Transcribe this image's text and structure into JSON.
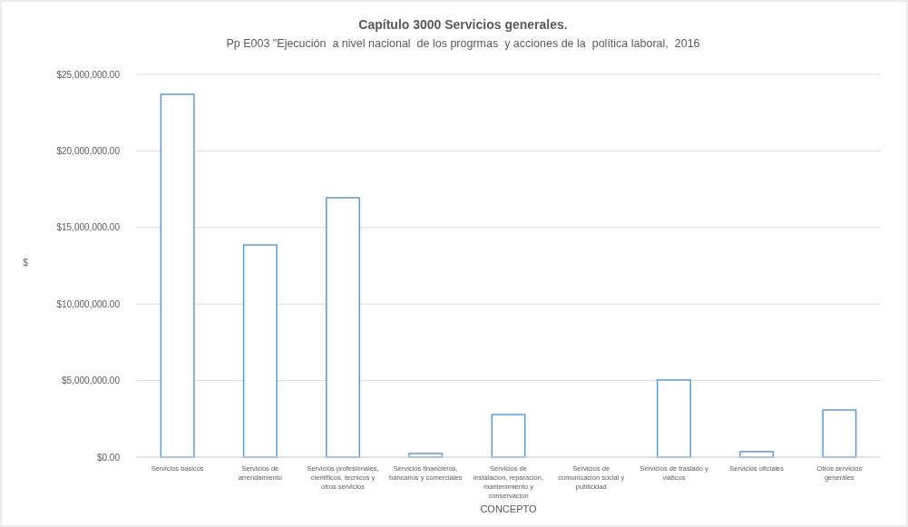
{
  "chart_data": {
    "type": "bar",
    "title": "Capítulo 3000 Servicios generales.",
    "subtitle": "Pp E003 \"Ejecución  a nivel nacional  de los progrmas  y acciones de la  política laboral,  2016",
    "xlabel": "CONCEPTO",
    "ylabel": "$",
    "categories": [
      "Servicios  basicos",
      "Servicios  de arrendamiento",
      "Servicios  profesionales, cientificos,  tecnicos y otros servicios",
      "Servicios  financieros, bancarios  y comerciales",
      "Servicios  de instalacion, reparacion,  mantenimiento y conservacion",
      "Servicios  de comunicacion social y publicidad",
      "Servicios  de traslado y viaticos",
      "Servicios  oficiales",
      "Otros servicios generales"
    ],
    "values": [
      23700000,
      13860000,
      16940000,
      240000,
      2780000,
      0,
      5040000,
      360000,
      3080000
    ],
    "color": "#5b9bd5",
    "ylim": [
      0,
      25000000
    ],
    "yticks": [
      {
        "value": 0,
        "label": "$0.00"
      },
      {
        "value": 5000000,
        "label": "$5,000,000.00"
      },
      {
        "value": 10000000,
        "label": "$10,000,000.00"
      },
      {
        "value": 15000000,
        "label": "$15,000,000.00"
      },
      {
        "value": 20000000,
        "label": "$20,000,000.00"
      },
      {
        "value": 25000000,
        "label": "$25,000,000.00"
      }
    ],
    "grid": "y"
  }
}
